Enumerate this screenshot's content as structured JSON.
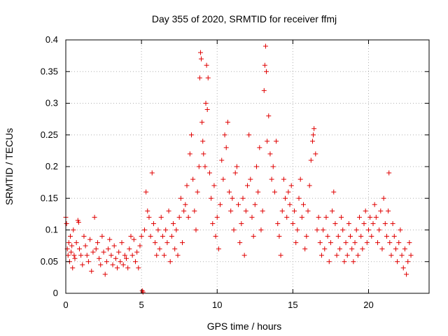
{
  "chart_data": {
    "type": "scatter",
    "title": "Day 355 of 2020, SRMTID for receiver ffmj",
    "xlabel": "GPS time / hours",
    "ylabel": "SRMTID / TECUs",
    "xlim": [
      0,
      24
    ],
    "ylim": [
      0,
      0.4
    ],
    "grid": true,
    "marker": "plus",
    "color": "#e00000",
    "xticks": [
      0,
      5,
      10,
      15,
      20
    ],
    "xtick_labels": [
      "0",
      "5",
      "10",
      "15",
      "20"
    ],
    "yticks": [
      0,
      0.05,
      0.1,
      0.15,
      0.2,
      0.25,
      0.3,
      0.35,
      0.4
    ],
    "ytick_labels": [
      "0",
      "0.05",
      "0.1",
      "0.15",
      "0.2",
      "0.25",
      "0.3",
      "0.35",
      "0.4"
    ],
    "series": [
      {
        "name": "SRMTID",
        "points": [
          [
            0.0,
            0.12
          ],
          [
            0.05,
            0.11
          ],
          [
            0.1,
            0.07
          ],
          [
            0.15,
            0.06
          ],
          [
            0.2,
            0.08
          ],
          [
            0.25,
            0.05
          ],
          [
            0.3,
            0.09
          ],
          [
            0.35,
            0.065
          ],
          [
            0.4,
            0.075
          ],
          [
            0.45,
            0.04
          ],
          [
            0.5,
            0.1
          ],
          [
            0.55,
            0.06
          ],
          [
            0.6,
            0.055
          ],
          [
            0.7,
            0.08
          ],
          [
            0.8,
            0.115
          ],
          [
            0.85,
            0.112
          ],
          [
            0.9,
            0.07
          ],
          [
            1.0,
            0.06
          ],
          [
            1.1,
            0.045
          ],
          [
            1.2,
            0.09
          ],
          [
            1.3,
            0.075
          ],
          [
            1.4,
            0.06
          ],
          [
            1.5,
            0.05
          ],
          [
            1.6,
            0.085
          ],
          [
            1.7,
            0.035
          ],
          [
            1.8,
            0.065
          ],
          [
            1.9,
            0.12
          ],
          [
            2.0,
            0.07
          ],
          [
            2.1,
            0.08
          ],
          [
            2.2,
            0.055
          ],
          [
            2.3,
            0.045
          ],
          [
            2.4,
            0.09
          ],
          [
            2.5,
            0.065
          ],
          [
            2.6,
            0.03
          ],
          [
            2.7,
            0.05
          ],
          [
            2.8,
            0.07
          ],
          [
            2.9,
            0.085
          ],
          [
            3.0,
            0.06
          ],
          [
            3.1,
            0.045
          ],
          [
            3.2,
            0.075
          ],
          [
            3.3,
            0.055
          ],
          [
            3.4,
            0.04
          ],
          [
            3.5,
            0.065
          ],
          [
            3.6,
            0.05
          ],
          [
            3.7,
            0.08
          ],
          [
            3.8,
            0.045
          ],
          [
            3.9,
            0.06
          ],
          [
            4.0,
            0.055
          ],
          [
            4.1,
            0.04
          ],
          [
            4.2,
            0.07
          ],
          [
            4.3,
            0.09
          ],
          [
            4.4,
            0.06
          ],
          [
            4.5,
            0.085
          ],
          [
            4.6,
            0.05
          ],
          [
            4.7,
            0.065
          ],
          [
            4.8,
            0.04
          ],
          [
            4.9,
            0.075
          ],
          [
            5.0,
            0.09
          ],
          [
            5.05,
            0.004
          ],
          [
            5.1,
            0.002
          ],
          [
            5.2,
            0.1
          ],
          [
            5.3,
            0.16
          ],
          [
            5.4,
            0.13
          ],
          [
            5.5,
            0.12
          ],
          [
            5.6,
            0.09
          ],
          [
            5.7,
            0.19
          ],
          [
            5.8,
            0.11
          ],
          [
            5.9,
            0.08
          ],
          [
            6.0,
            0.06
          ],
          [
            6.1,
            0.1
          ],
          [
            6.2,
            0.07
          ],
          [
            6.3,
            0.12
          ],
          [
            6.4,
            0.09
          ],
          [
            6.5,
            0.06
          ],
          [
            6.6,
            0.1
          ],
          [
            6.7,
            0.08
          ],
          [
            6.8,
            0.13
          ],
          [
            6.9,
            0.05
          ],
          [
            7.0,
            0.09
          ],
          [
            7.1,
            0.11
          ],
          [
            7.2,
            0.07
          ],
          [
            7.3,
            0.1
          ],
          [
            7.4,
            0.06
          ],
          [
            7.5,
            0.12
          ],
          [
            7.6,
            0.15
          ],
          [
            7.7,
            0.08
          ],
          [
            7.8,
            0.13
          ],
          [
            7.9,
            0.14
          ],
          [
            8.0,
            0.17
          ],
          [
            8.1,
            0.12
          ],
          [
            8.2,
            0.22
          ],
          [
            8.3,
            0.25
          ],
          [
            8.4,
            0.18
          ],
          [
            8.5,
            0.13
          ],
          [
            8.6,
            0.1
          ],
          [
            8.7,
            0.16
          ],
          [
            8.8,
            0.2
          ],
          [
            8.85,
            0.34
          ],
          [
            8.9,
            0.38
          ],
          [
            8.95,
            0.37
          ],
          [
            9.0,
            0.27
          ],
          [
            9.05,
            0.24
          ],
          [
            9.1,
            0.22
          ],
          [
            9.2,
            0.2
          ],
          [
            9.25,
            0.3
          ],
          [
            9.3,
            0.36
          ],
          [
            9.35,
            0.29
          ],
          [
            9.4,
            0.34
          ],
          [
            9.5,
            0.19
          ],
          [
            9.6,
            0.15
          ],
          [
            9.7,
            0.11
          ],
          [
            9.8,
            0.17
          ],
          [
            9.9,
            0.09
          ],
          [
            10.0,
            0.12
          ],
          [
            10.1,
            0.07
          ],
          [
            10.2,
            0.14
          ],
          [
            10.3,
            0.21
          ],
          [
            10.4,
            0.18
          ],
          [
            10.5,
            0.25
          ],
          [
            10.6,
            0.23
          ],
          [
            10.7,
            0.27
          ],
          [
            10.8,
            0.16
          ],
          [
            10.9,
            0.13
          ],
          [
            11.0,
            0.15
          ],
          [
            11.1,
            0.1
          ],
          [
            11.2,
            0.19
          ],
          [
            11.3,
            0.2
          ],
          [
            11.4,
            0.14
          ],
          [
            11.5,
            0.08
          ],
          [
            11.6,
            0.11
          ],
          [
            11.7,
            0.15
          ],
          [
            11.8,
            0.06
          ],
          [
            11.9,
            0.13
          ],
          [
            12.0,
            0.17
          ],
          [
            12.1,
            0.25
          ],
          [
            12.2,
            0.18
          ],
          [
            12.3,
            0.12
          ],
          [
            12.4,
            0.09
          ],
          [
            12.5,
            0.14
          ],
          [
            12.6,
            0.2
          ],
          [
            12.7,
            0.16
          ],
          [
            12.8,
            0.23
          ],
          [
            12.9,
            0.1
          ],
          [
            13.0,
            0.13
          ],
          [
            13.1,
            0.32
          ],
          [
            13.15,
            0.36
          ],
          [
            13.2,
            0.39
          ],
          [
            13.25,
            0.35
          ],
          [
            13.3,
            0.24
          ],
          [
            13.4,
            0.28
          ],
          [
            13.5,
            0.22
          ],
          [
            13.6,
            0.18
          ],
          [
            13.7,
            0.2
          ],
          [
            13.8,
            0.16
          ],
          [
            13.9,
            0.24
          ],
          [
            14.0,
            0.11
          ],
          [
            14.1,
            0.09
          ],
          [
            14.2,
            0.06
          ],
          [
            14.3,
            0.13
          ],
          [
            14.4,
            0.18
          ],
          [
            14.5,
            0.15
          ],
          [
            14.6,
            0.12
          ],
          [
            14.7,
            0.16
          ],
          [
            14.8,
            0.14
          ],
          [
            14.9,
            0.17
          ],
          [
            15.0,
            0.11
          ],
          [
            15.1,
            0.13
          ],
          [
            15.2,
            0.08
          ],
          [
            15.3,
            0.1
          ],
          [
            15.4,
            0.15
          ],
          [
            15.5,
            0.18
          ],
          [
            15.6,
            0.12
          ],
          [
            15.7,
            0.14
          ],
          [
            15.8,
            0.07
          ],
          [
            15.9,
            0.09
          ],
          [
            16.0,
            0.13
          ],
          [
            16.1,
            0.17
          ],
          [
            16.2,
            0.21
          ],
          [
            16.3,
            0.24
          ],
          [
            16.35,
            0.25
          ],
          [
            16.4,
            0.26
          ],
          [
            16.5,
            0.22
          ],
          [
            16.6,
            0.1
          ],
          [
            16.7,
            0.12
          ],
          [
            16.8,
            0.08
          ],
          [
            16.9,
            0.06
          ],
          [
            17.0,
            0.1
          ],
          [
            17.1,
            0.07
          ],
          [
            17.2,
            0.12
          ],
          [
            17.3,
            0.09
          ],
          [
            17.4,
            0.05
          ],
          [
            17.5,
            0.08
          ],
          [
            17.6,
            0.13
          ],
          [
            17.7,
            0.16
          ],
          [
            17.8,
            0.11
          ],
          [
            17.9,
            0.06
          ],
          [
            18.0,
            0.09
          ],
          [
            18.1,
            0.07
          ],
          [
            18.2,
            0.12
          ],
          [
            18.3,
            0.1
          ],
          [
            18.4,
            0.05
          ],
          [
            18.5,
            0.08
          ],
          [
            18.6,
            0.06
          ],
          [
            18.7,
            0.11
          ],
          [
            18.8,
            0.09
          ],
          [
            18.9,
            0.07
          ],
          [
            19.0,
            0.05
          ],
          [
            19.1,
            0.08
          ],
          [
            19.2,
            0.1
          ],
          [
            19.3,
            0.06
          ],
          [
            19.4,
            0.12
          ],
          [
            19.5,
            0.09
          ],
          [
            19.6,
            0.07
          ],
          [
            19.7,
            0.11
          ],
          [
            19.8,
            0.13
          ],
          [
            19.9,
            0.08
          ],
          [
            20.0,
            0.1
          ],
          [
            20.1,
            0.12
          ],
          [
            20.2,
            0.09
          ],
          [
            20.3,
            0.11
          ],
          [
            20.4,
            0.14
          ],
          [
            20.5,
            0.12
          ],
          [
            20.6,
            0.08
          ],
          [
            20.7,
            0.1
          ],
          [
            20.8,
            0.13
          ],
          [
            20.9,
            0.07
          ],
          [
            21.0,
            0.15
          ],
          [
            21.1,
            0.11
          ],
          [
            21.2,
            0.09
          ],
          [
            21.3,
            0.13
          ],
          [
            21.35,
            0.19
          ],
          [
            21.4,
            0.08
          ],
          [
            21.5,
            0.06
          ],
          [
            21.6,
            0.11
          ],
          [
            21.7,
            0.09
          ],
          [
            21.8,
            0.07
          ],
          [
            21.9,
            0.05
          ],
          [
            22.0,
            0.08
          ],
          [
            22.1,
            0.1
          ],
          [
            22.2,
            0.06
          ],
          [
            22.3,
            0.04
          ],
          [
            22.4,
            0.07
          ],
          [
            22.5,
            0.03
          ],
          [
            22.6,
            0.05
          ],
          [
            22.7,
            0.08
          ],
          [
            22.8,
            0.06
          ]
        ]
      }
    ]
  }
}
